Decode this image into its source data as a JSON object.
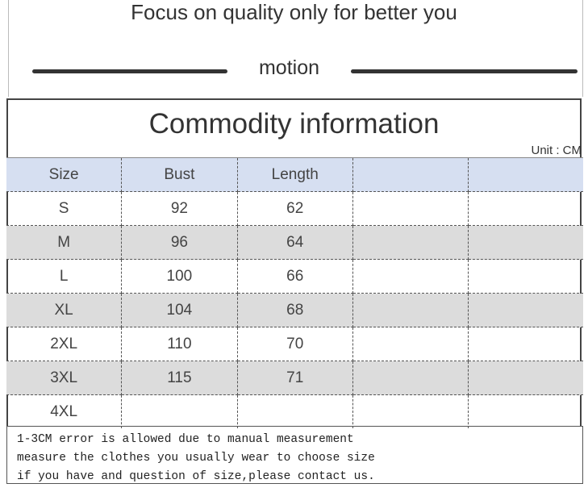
{
  "slogan": "Focus on quality only for better you",
  "subtitle": "motion",
  "title": "Commodity information",
  "unit": "Unit : CM",
  "table": {
    "headers": [
      "Size",
      "Bust",
      "Length",
      "",
      ""
    ],
    "rows": [
      [
        "S",
        "92",
        "62",
        "",
        ""
      ],
      [
        "M",
        "96",
        "64",
        "",
        ""
      ],
      [
        "L",
        "100",
        "66",
        "",
        ""
      ],
      [
        "XL",
        "104",
        "68",
        "",
        ""
      ],
      [
        "2XL",
        "110",
        "70",
        "",
        ""
      ],
      [
        "3XL",
        "115",
        "71",
        "",
        ""
      ],
      [
        "4XL",
        "",
        "",
        "",
        ""
      ]
    ]
  },
  "notes": [
    "1-3CM error is allowed due to manual measurement",
    "measure the clothes you usually wear to choose size",
    "if you have and question of size,please contact us."
  ],
  "colors": {
    "header_bg": "#d6dff1",
    "alt_row_bg": "#dcdcdc"
  }
}
